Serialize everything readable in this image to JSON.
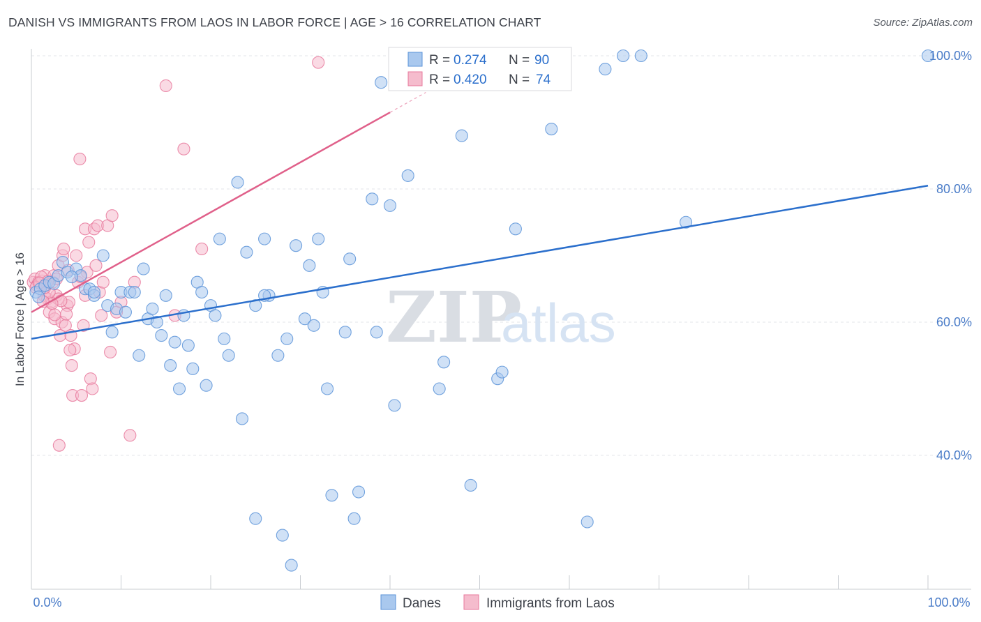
{
  "header": {
    "title": "DANISH VS IMMIGRANTS FROM LAOS IN LABOR FORCE | AGE > 16 CORRELATION CHART",
    "source": "Source: ZipAtlas.com"
  },
  "watermark": {
    "part1": "ZIP",
    "part2": "atlas"
  },
  "legend": {
    "series": [
      {
        "r_label": "R =",
        "r_value": "0.274",
        "n_label": "N =",
        "n_value": "90"
      },
      {
        "r_label": "R =",
        "r_value": "0.420",
        "n_label": "N =",
        "n_value": "74"
      }
    ]
  },
  "bottom_legend": {
    "danes": "Danes",
    "laos": "Immigrants from Laos"
  },
  "chart_data": {
    "type": "scatter",
    "title": "DANISH VS IMMIGRANTS FROM LAOS IN LABOR FORCE | AGE > 16 CORRELATION CHART",
    "ylabel": "In Labor Force | Age > 16",
    "xlabel": "",
    "xlim": [
      0,
      100
    ],
    "ylim": [
      20,
      102
    ],
    "x_tick_labels": [
      "0.0%",
      "100.0%"
    ],
    "y_ticks": [
      40,
      60,
      80,
      100
    ],
    "y_tick_labels": [
      "40.0%",
      "60.0%",
      "80.0%",
      "100.0%"
    ],
    "grid": true,
    "legend_position": "top-center",
    "series": [
      {
        "name": "Danes",
        "color": "#5b93d8",
        "fill": "#a9c8ee",
        "line_color": "#2b6fcc",
        "r": 0.274,
        "n": 90,
        "trend": {
          "x0": 0,
          "y0": 57.5,
          "x1": 100,
          "y1": 80.5
        },
        "points": [
          [
            0.5,
            64.5
          ],
          [
            1,
            65
          ],
          [
            1.5,
            65.5
          ],
          [
            2,
            66
          ],
          [
            2.5,
            65.8
          ],
          [
            3,
            67
          ],
          [
            3.5,
            69
          ],
          [
            4,
            67.5
          ],
          [
            5,
            68
          ],
          [
            5.5,
            67
          ],
          [
            6,
            65
          ],
          [
            6.5,
            65
          ],
          [
            7,
            64
          ],
          [
            8,
            70
          ],
          [
            8.5,
            62.5
          ],
          [
            9,
            58.5
          ],
          [
            9.5,
            62
          ],
          [
            10,
            64.5
          ],
          [
            10.5,
            61.5
          ],
          [
            11,
            64.5
          ],
          [
            11.5,
            64.5
          ],
          [
            12,
            55
          ],
          [
            12.5,
            68
          ],
          [
            13,
            60.5
          ],
          [
            13.5,
            62
          ],
          [
            14,
            60
          ],
          [
            14.5,
            58
          ],
          [
            15,
            64
          ],
          [
            15.5,
            53.5
          ],
          [
            16,
            57
          ],
          [
            16.5,
            50
          ],
          [
            17,
            61
          ],
          [
            17.5,
            56.5
          ],
          [
            18,
            53
          ],
          [
            18.5,
            66
          ],
          [
            19,
            64.5
          ],
          [
            19.5,
            50.5
          ],
          [
            20,
            62.5
          ],
          [
            20.5,
            61
          ],
          [
            21,
            72.5
          ],
          [
            21.5,
            57.5
          ],
          [
            22,
            55
          ],
          [
            23,
            81
          ],
          [
            23.5,
            45.5
          ],
          [
            24,
            70.5
          ],
          [
            25,
            62.5
          ],
          [
            26,
            72.5
          ],
          [
            26.5,
            64
          ],
          [
            27.5,
            55
          ],
          [
            28,
            28
          ],
          [
            28.5,
            57.5
          ],
          [
            29,
            23.5
          ],
          [
            29.5,
            71.5
          ],
          [
            30.5,
            60.5
          ],
          [
            31,
            68.5
          ],
          [
            31.5,
            59.5
          ],
          [
            32,
            72.5
          ],
          [
            32.5,
            64.5
          ],
          [
            33,
            50
          ],
          [
            33.5,
            34
          ],
          [
            35,
            58.5
          ],
          [
            35.5,
            69.5
          ],
          [
            36,
            30.5
          ],
          [
            36.5,
            34.5
          ],
          [
            38,
            78.5
          ],
          [
            38.5,
            58.5
          ],
          [
            39,
            96
          ],
          [
            40,
            77.5
          ],
          [
            40.5,
            47.5
          ],
          [
            42,
            82
          ],
          [
            45,
            100
          ],
          [
            45.5,
            50
          ],
          [
            46,
            54
          ],
          [
            48,
            88
          ],
          [
            49,
            35.5
          ],
          [
            52,
            51.5
          ],
          [
            52.5,
            52.5
          ],
          [
            54,
            74
          ],
          [
            58,
            89
          ],
          [
            62,
            30
          ],
          [
            64,
            98
          ],
          [
            66,
            100
          ],
          [
            68,
            100
          ],
          [
            73,
            75
          ],
          [
            100,
            100
          ],
          [
            4.5,
            66.8
          ],
          [
            7,
            64.5
          ],
          [
            26,
            64
          ],
          [
            25,
            30.5
          ],
          [
            0.8,
            63.8
          ]
        ]
      },
      {
        "name": "Immigrants from Laos",
        "color": "#e8799c",
        "fill": "#f5bccd",
        "line_color": "#e0608a",
        "r": 0.42,
        "n": 74,
        "trend": {
          "x0": 0,
          "y0": 61.5,
          "x1": 40,
          "y1": 91.5
        },
        "points": [
          [
            0.2,
            66
          ],
          [
            0.4,
            66.5
          ],
          [
            0.6,
            65.5
          ],
          [
            0.8,
            66
          ],
          [
            1,
            65.8
          ],
          [
            1.2,
            66.2
          ],
          [
            1.4,
            64
          ],
          [
            1.5,
            67
          ],
          [
            1.6,
            65.5
          ],
          [
            1.8,
            63.5
          ],
          [
            2,
            61.5
          ],
          [
            2.2,
            63
          ],
          [
            2.4,
            66
          ],
          [
            2.5,
            67
          ],
          [
            2.6,
            60.5
          ],
          [
            2.8,
            64
          ],
          [
            3,
            68.5
          ],
          [
            3.2,
            58
          ],
          [
            3.4,
            60
          ],
          [
            3.5,
            70
          ],
          [
            3.6,
            71
          ],
          [
            3.8,
            59.5
          ],
          [
            4,
            62.5
          ],
          [
            4.2,
            63
          ],
          [
            4.4,
            58
          ],
          [
            4.5,
            53.5
          ],
          [
            4.6,
            49
          ],
          [
            4.8,
            56
          ],
          [
            5,
            70
          ],
          [
            5.2,
            66
          ],
          [
            5.4,
            84.5
          ],
          [
            5.6,
            49
          ],
          [
            5.8,
            59.5
          ],
          [
            6,
            74
          ],
          [
            6.2,
            67.5
          ],
          [
            6.4,
            72
          ],
          [
            6.6,
            51.5
          ],
          [
            6.8,
            50
          ],
          [
            7,
            74
          ],
          [
            7.2,
            68.5
          ],
          [
            7.4,
            74.5
          ],
          [
            7.6,
            64.5
          ],
          [
            7.8,
            61
          ],
          [
            8,
            66
          ],
          [
            8.5,
            74.5
          ],
          [
            8.8,
            55.5
          ],
          [
            9,
            76
          ],
          [
            9.5,
            61.5
          ],
          [
            10,
            63
          ],
          [
            11,
            43
          ],
          [
            11.5,
            66
          ],
          [
            15,
            95.5
          ],
          [
            16,
            61
          ],
          [
            17,
            86
          ],
          [
            19,
            71
          ],
          [
            32,
            99
          ],
          [
            3,
            63.5
          ],
          [
            2,
            64.5
          ],
          [
            1.5,
            65.2
          ],
          [
            2.8,
            66.5
          ],
          [
            3.3,
            63.2
          ],
          [
            1.1,
            66.8
          ],
          [
            0.5,
            65.2
          ],
          [
            4.1,
            67.8
          ],
          [
            2.3,
            62.8
          ],
          [
            5.5,
            66.8
          ],
          [
            6,
            64
          ],
          [
            1.8,
            66.1
          ],
          [
            3.9,
            61.2
          ],
          [
            4.3,
            55.8
          ],
          [
            3.1,
            41.5
          ],
          [
            2.6,
            61.1
          ],
          [
            1.3,
            63.1
          ],
          [
            0.9,
            65.9
          ]
        ]
      }
    ]
  }
}
